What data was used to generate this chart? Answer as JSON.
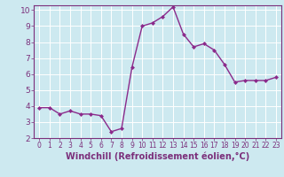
{
  "x": [
    0,
    1,
    2,
    3,
    4,
    5,
    6,
    7,
    8,
    9,
    10,
    11,
    12,
    13,
    14,
    15,
    16,
    17,
    18,
    19,
    20,
    21,
    22,
    23
  ],
  "y": [
    3.9,
    3.9,
    3.5,
    3.7,
    3.5,
    3.5,
    3.4,
    2.4,
    2.6,
    6.4,
    9.0,
    9.2,
    9.6,
    10.2,
    8.5,
    7.7,
    7.9,
    7.5,
    6.6,
    5.5,
    5.6,
    5.6,
    5.6,
    5.8
  ],
  "line_color": "#8b2a8b",
  "marker": "D",
  "markersize": 2.0,
  "linewidth": 1.0,
  "xlabel": "Windchill (Refroidissement éolien,°C)",
  "ylim": [
    2,
    10.3
  ],
  "xlim": [
    -0.5,
    23.5
  ],
  "yticks": [
    2,
    3,
    4,
    5,
    6,
    7,
    8,
    9,
    10
  ],
  "xticks": [
    0,
    1,
    2,
    3,
    4,
    5,
    6,
    7,
    8,
    9,
    10,
    11,
    12,
    13,
    14,
    15,
    16,
    17,
    18,
    19,
    20,
    21,
    22,
    23
  ],
  "background_color": "#cde9f0",
  "grid_color": "#ffffff",
  "tick_color": "#7b2f7b",
  "label_color": "#7b2f7b",
  "xlabel_fontsize": 7.0,
  "tick_fontsize_x": 5.5,
  "tick_fontsize_y": 6.5
}
